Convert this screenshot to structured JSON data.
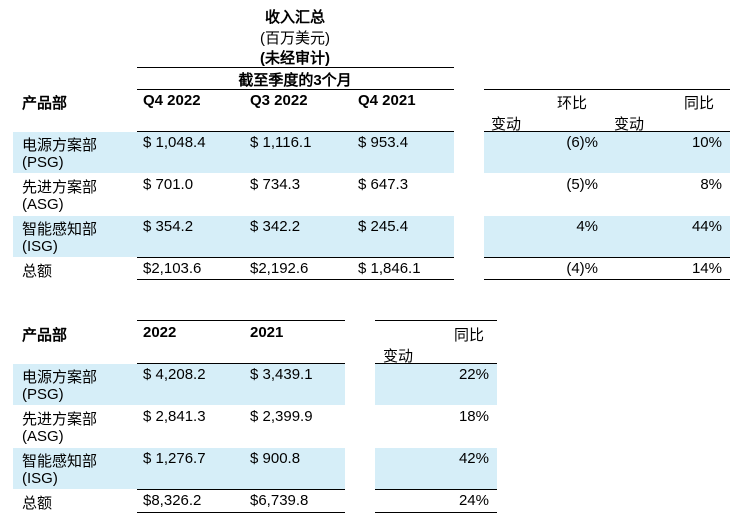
{
  "header": {
    "title": "收入汇总",
    "unit": "(百万美元)",
    "audit": "(未经审计)",
    "period": "截至季度的3个月"
  },
  "quarterly": {
    "col_segment": "产品部",
    "col_q4_2022": "Q4 2022",
    "col_q3_2022": "Q3 2022",
    "col_q4_2021": "Q4 2021",
    "col_qoq_top": "环比",
    "col_qoq_bottom": "变动",
    "col_yoy_top": "同比",
    "col_yoy_bottom": "变动",
    "rows": [
      {
        "seg1": "电源方案部",
        "seg2": "(PSG)",
        "q4_2022": "$ 1,048.4",
        "q3_2022": "$ 1,116.1",
        "q4_2021": "$ 953.4",
        "qoq": "(6)%",
        "yoy": "10%"
      },
      {
        "seg1": "先进方案部",
        "seg2": "(ASG)",
        "q4_2022": "$ 701.0",
        "q3_2022": "$ 734.3",
        "q4_2021": "$ 647.3",
        "qoq": "(5)%",
        "yoy": "8%"
      },
      {
        "seg1": "智能感知部",
        "seg2": "(ISG)",
        "q4_2022": "$ 354.2",
        "q3_2022": "$ 342.2",
        "q4_2021": "$ 245.4",
        "qoq": "4%",
        "yoy": "44%"
      }
    ],
    "total": {
      "label": "总额",
      "q4_2022": "$2,103.6",
      "q3_2022": "$2,192.6",
      "q4_2021": "$ 1,846.1",
      "qoq": "(4)%",
      "yoy": "14%"
    }
  },
  "annual": {
    "col_segment": "产品部",
    "col_2022": "2022",
    "col_2021": "2021",
    "col_yoy_top": "同比",
    "col_yoy_bottom": "变动",
    "rows": [
      {
        "seg1": "电源方案部",
        "seg2": "(PSG)",
        "y2022": "$ 4,208.2",
        "y2021": "$ 3,439.1",
        "yoy": "22%"
      },
      {
        "seg1": "先进方案部",
        "seg2": "(ASG)",
        "y2022": "$ 2,841.3",
        "y2021": "$ 2,399.9",
        "yoy": "18%"
      },
      {
        "seg1": "智能感知部",
        "seg2": "(ISG)",
        "y2022": "$ 1,276.7",
        "y2021": "$ 900.8",
        "yoy": "42%"
      }
    ],
    "total": {
      "label": "总额",
      "y2022": "$8,326.2",
      "y2021": "$6,739.8",
      "yoy": "24%"
    }
  }
}
